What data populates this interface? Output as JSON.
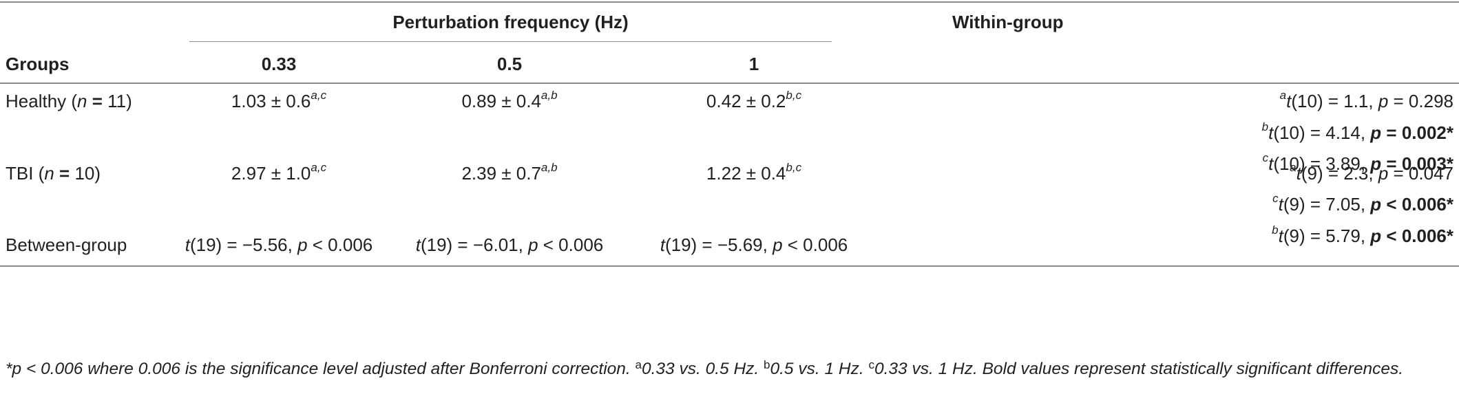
{
  "header": {
    "spanning": "Perturbation frequency (Hz)",
    "within": "Within-group",
    "groups": "Groups",
    "freqs": [
      "0.33",
      "0.5",
      "1"
    ]
  },
  "rows": {
    "healthy": {
      "label_pre": "Healthy (",
      "label_n": "n",
      "label_eq": " = ",
      "label_val": "11",
      "label_post": ")",
      "cells": [
        {
          "val": "1.03 ± 0.6",
          "sup": "a,c"
        },
        {
          "val": "0.89 ± 0.4",
          "sup": "a,b"
        },
        {
          "val": "0.42 ± 0.2",
          "sup": "b,c"
        }
      ],
      "within": [
        {
          "sup": "a",
          "t": "t",
          "df": "(10) = 1.1, ",
          "p": "p",
          "pval": " = 0.298",
          "bold": false
        },
        {
          "sup": "b",
          "t": "t",
          "df": "(10) = 4.14, ",
          "p": "p",
          "pval": " = 0.002*",
          "bold": true
        },
        {
          "sup": "c",
          "t": "t",
          "df": "(10) = 3.89, ",
          "p": "p",
          "pval": " = 0.003*",
          "bold": true
        }
      ]
    },
    "tbi": {
      "label_pre": "TBI (",
      "label_n": "n",
      "label_eq": " = ",
      "label_val": "10",
      "label_post": ")",
      "cells": [
        {
          "val": "2.97 ± 1.0",
          "sup": "a,c"
        },
        {
          "val": "2.39 ± 0.7",
          "sup": "a,b"
        },
        {
          "val": "1.22 ± 0.4",
          "sup": "b,c"
        }
      ],
      "within": [
        {
          "sup": "a",
          "t": "t",
          "df": "(9) = 2.3, ",
          "p": "p",
          "pval": " = 0.047",
          "bold": false
        },
        {
          "sup": "c",
          "t": "t",
          "df": "(9) = 7.05, ",
          "p": "p",
          "pval": " < 0.006*",
          "bold": true
        },
        {
          "sup": "b",
          "t": "t",
          "df": "(9) = 5.79, ",
          "p": "p",
          "pval": " < 0.006*",
          "bold": true
        }
      ]
    },
    "between": {
      "label": "Between-group",
      "cells": [
        {
          "t": "t",
          "rest": "(19) = −5.56, ",
          "p": "p",
          "pval": " < 0.006"
        },
        {
          "t": "t",
          "rest": "(19) = −6.01, ",
          "p": "p",
          "pval": " < 0.006"
        },
        {
          "t": "t",
          "rest": "(19) = −5.69, ",
          "p": "p",
          "pval": " < 0.006"
        }
      ]
    }
  },
  "footnote": {
    "line": "*p < 0.006 where 0.006 is the significance level adjusted after Bonferroni correction. ",
    "a_mark": "a",
    "a_text": "0.33 vs. 0.5 Hz. ",
    "b_mark": "b",
    "b_text": "0.5 vs. 1 Hz. ",
    "c_mark": "c",
    "c_text": "0.33 vs. 1 Hz. ",
    "tail": "Bold values represent statistically significant differences."
  }
}
